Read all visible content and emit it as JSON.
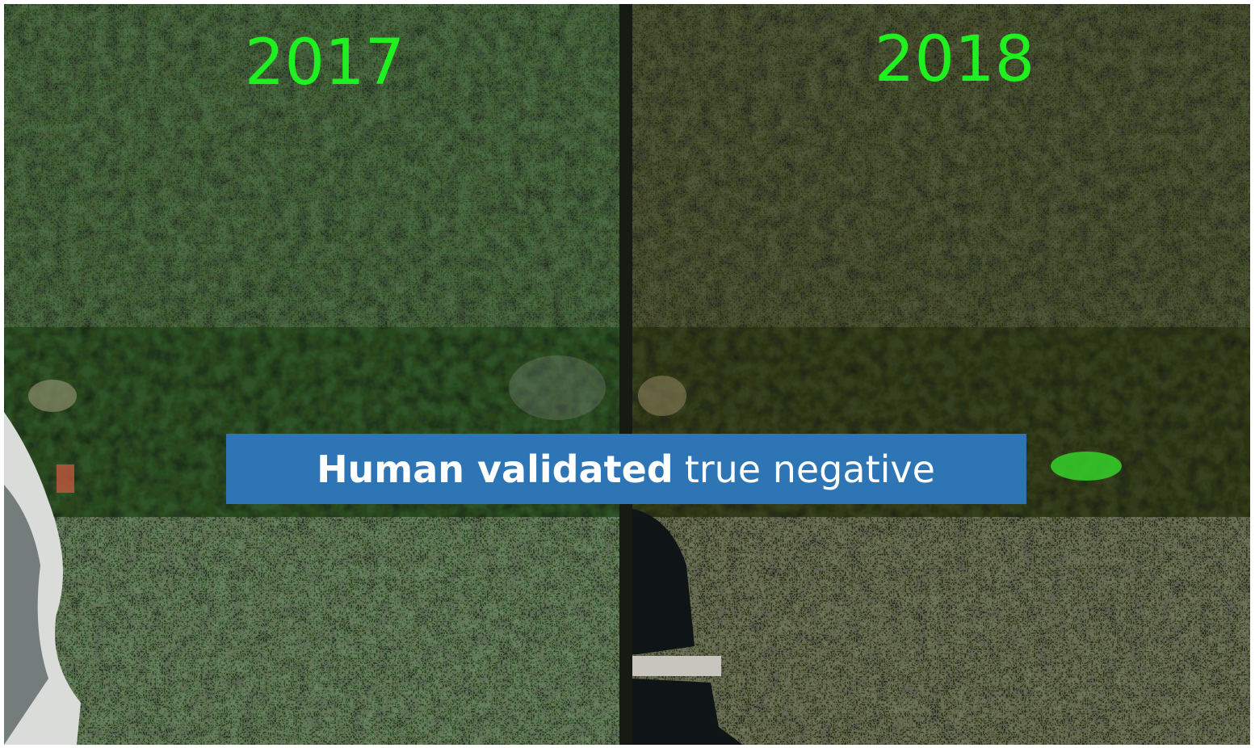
{
  "panels": [
    {
      "label": "2017"
    },
    {
      "label": "2018"
    }
  ],
  "banner": {
    "bold": "Human validated",
    "rest": "true negative"
  }
}
